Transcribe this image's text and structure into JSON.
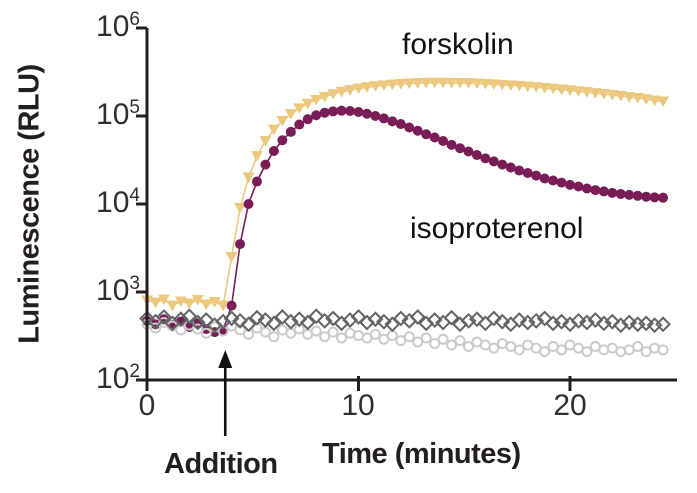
{
  "figure": {
    "series_label_forskolin": "forskolin",
    "series_label_isoproterenol": "isoproterenol",
    "addition_label": "Addition"
  },
  "chart_data": {
    "type": "scatter",
    "title": "",
    "xlabel": "Time (minutes)",
    "ylabel": "Luminescence (RLU)",
    "grid": false,
    "legend": "none (inline text annotations)",
    "x_axis": {
      "min": 0,
      "max": 25,
      "unit": "minutes",
      "ticks": [
        {
          "t": 0,
          "label": "0"
        },
        {
          "t": 10,
          "label": "10"
        },
        {
          "t": 20,
          "label": "20"
        }
      ]
    },
    "y_axis": {
      "scale": "log10",
      "min": 100,
      "max": 1000000,
      "unit": "RLU",
      "ticks": [
        {
          "base": "10",
          "exp": "6"
        },
        {
          "base": "10",
          "exp": "5"
        },
        {
          "base": "10",
          "exp": "4"
        },
        {
          "base": "10",
          "exp": "3"
        },
        {
          "base": "10",
          "exp": "2"
        }
      ]
    },
    "annotations": {
      "addition": {
        "label": "Addition",
        "time_min": 3.7
      }
    },
    "axis_color": "#231f20",
    "t_start": 0,
    "t_step": 0.4,
    "series": [
      {
        "name": "forskolin",
        "marker": "triangle-down",
        "color": "#ecc87e",
        "line": true,
        "values": [
          800,
          760,
          820,
          700,
          780,
          740,
          810,
          720,
          770,
          700,
          2500,
          9000,
          20000,
          35000,
          52000,
          70000,
          88000,
          105000,
          122000,
          138000,
          152000,
          165000,
          177000,
          188000,
          197000,
          205000,
          212000,
          218000,
          223000,
          227000,
          231000,
          234000,
          236000,
          238000,
          239000,
          239000,
          238000,
          237000,
          236000,
          234000,
          232000,
          229000,
          226000,
          223000,
          220000,
          216000,
          212000,
          208000,
          204000,
          200000,
          196000,
          191000,
          187000,
          182000,
          178000,
          173000,
          169000,
          164000,
          160000,
          155000,
          150000,
          146000
        ]
      },
      {
        "name": "isoproterenol",
        "marker": "circle-filled",
        "color": "#7a1d57",
        "line": true,
        "values": [
          470,
          430,
          490,
          420,
          460,
          400,
          440,
          380,
          350,
          370,
          700,
          3500,
          10000,
          18000,
          28000,
          40000,
          53000,
          66000,
          80000,
          92000,
          102000,
          109000,
          113000,
          115000,
          114000,
          111000,
          106000,
          100000,
          94000,
          87000,
          81000,
          74000,
          68000,
          62000,
          57000,
          52000,
          47000,
          43000,
          39500,
          36000,
          33000,
          30500,
          28000,
          26000,
          24000,
          22500,
          21000,
          19500,
          18500,
          17500,
          16500,
          15800,
          15000,
          14400,
          13900,
          13400,
          13000,
          12700,
          12400,
          12100,
          11900,
          11800
        ]
      },
      {
        "name": "control-open-circles",
        "marker": "circle-open",
        "color": "#cbcbcb",
        "line": false,
        "values": [
          430,
          390,
          450,
          410,
          370,
          420,
          380,
          340,
          400,
          360,
          410,
          370,
          330,
          390,
          350,
          310,
          370,
          340,
          380,
          330,
          360,
          310,
          350,
          300,
          340,
          320,
          300,
          330,
          290,
          320,
          280,
          310,
          270,
          300,
          260,
          290,
          250,
          280,
          240,
          270,
          250,
          230,
          260,
          240,
          220,
          250,
          230,
          210,
          240,
          220,
          250,
          230,
          210,
          240,
          220,
          230,
          210,
          220,
          240,
          210,
          230,
          220
        ]
      },
      {
        "name": "control-open-diamonds",
        "marker": "diamond-open",
        "color": "#646464",
        "line": false,
        "values": [
          500,
          460,
          520,
          440,
          490,
          530,
          450,
          480,
          420,
          460,
          500,
          470,
          430,
          510,
          480,
          440,
          520,
          460,
          490,
          450,
          530,
          470,
          500,
          440,
          480,
          520,
          450,
          490,
          460,
          430,
          500,
          470,
          520,
          440,
          480,
          450,
          510,
          430,
          470,
          490,
          440,
          500,
          460,
          430,
          480,
          450,
          470,
          500,
          440,
          460,
          430,
          470,
          450,
          480,
          440,
          460,
          420,
          450,
          430,
          440,
          420,
          430
        ]
      }
    ]
  }
}
